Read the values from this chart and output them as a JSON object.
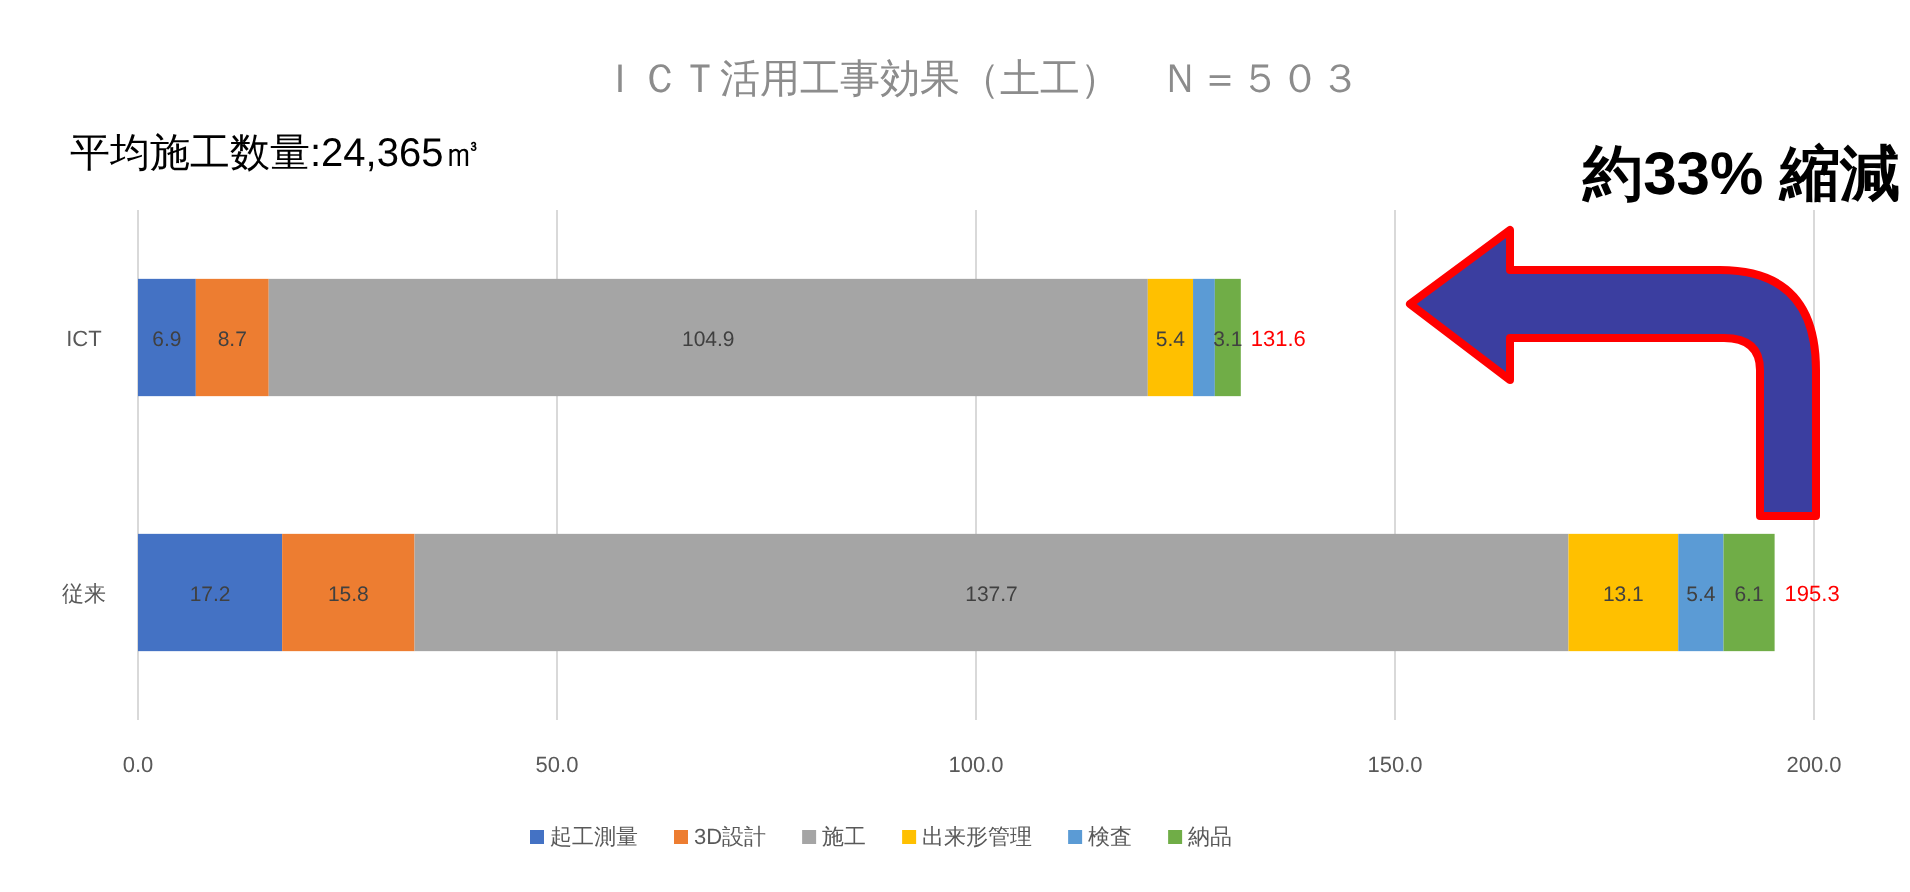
{
  "chart_data": {
    "type": "bar",
    "orientation": "horizontal",
    "stacked": true,
    "title": "ＩＣＴ活用工事効果（土工）　Ｎ＝５０３",
    "annotations": [
      "平均施工数量:24,365㎥",
      "約33% 縮減"
    ],
    "categories": [
      "ICT",
      "従来"
    ],
    "series": [
      {
        "name": "起工測量",
        "color": "#4472c4",
        "values": [
          6.9,
          17.2
        ],
        "value_labels": [
          "6.9",
          "17.2"
        ]
      },
      {
        "name": "3D設計",
        "color": "#ed7d31",
        "values": [
          8.7,
          15.8
        ],
        "value_labels": [
          "8.7",
          "15.8"
        ]
      },
      {
        "name": "施工",
        "color": "#a5a5a5",
        "values": [
          104.9,
          137.7
        ],
        "value_labels": [
          "104.9",
          "137.7"
        ]
      },
      {
        "name": "出来形管理",
        "color": "#ffc000",
        "values": [
          5.4,
          13.1
        ],
        "value_labels": [
          "5.4",
          "13.1"
        ]
      },
      {
        "name": "検査",
        "color": "#5b9bd5",
        "values": [
          2.6,
          5.4
        ],
        "value_labels": [
          null,
          "5.4"
        ]
      },
      {
        "name": "納品",
        "color": "#70ad47",
        "values": [
          3.1,
          6.1
        ],
        "value_labels": [
          "3.1",
          "6.1"
        ]
      }
    ],
    "totals": [
      "131.6",
      "195.3"
    ],
    "xlim": [
      0,
      200
    ],
    "xticks": [
      {
        "value": 0,
        "label": "0.0"
      },
      {
        "value": 50,
        "label": "50.0"
      },
      {
        "value": 100,
        "label": "100.0"
      },
      {
        "value": 150,
        "label": "150.0"
      },
      {
        "value": 200,
        "label": "200.0"
      }
    ],
    "grid": "x",
    "legend": "bottom"
  }
}
